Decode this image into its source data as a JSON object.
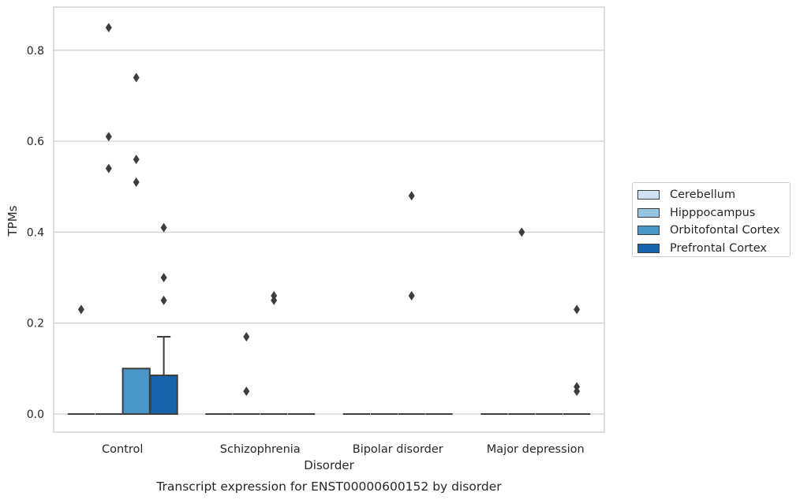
{
  "chart_data": {
    "type": "box",
    "title": "Transcript expression for ENST00000600152 by disorder",
    "xlabel": "Disorder",
    "ylabel": "TPMs",
    "ylim": [
      -0.04,
      0.895
    ],
    "yticks": [
      0.0,
      0.2,
      0.4,
      0.6,
      0.8
    ],
    "ytick_labels": [
      "0.0",
      "0.2",
      "0.4",
      "0.6",
      "0.8"
    ],
    "grid": "horizontal",
    "legend_position": "right",
    "categories": [
      "Control",
      "Schizophrenia",
      "Bipolar disorder",
      "Major depression"
    ],
    "series": [
      {
        "name": "Cerebellum",
        "color": "#d0e1f2",
        "boxes": [
          {
            "q1": 0,
            "median": 0,
            "q3": 0,
            "whisker_low": 0,
            "whisker_high": 0,
            "outliers": [
              0.23
            ]
          },
          {
            "q1": 0,
            "median": 0,
            "q3": 0,
            "whisker_low": 0,
            "whisker_high": 0,
            "outliers": []
          },
          {
            "q1": 0,
            "median": 0,
            "q3": 0,
            "whisker_low": 0,
            "whisker_high": 0,
            "outliers": []
          },
          {
            "q1": 0,
            "median": 0,
            "q3": 0,
            "whisker_low": 0,
            "whisker_high": 0,
            "outliers": []
          }
        ]
      },
      {
        "name": "Hipppocampus",
        "color": "#94c4df",
        "boxes": [
          {
            "q1": 0,
            "median": 0,
            "q3": 0,
            "whisker_low": 0,
            "whisker_high": 0,
            "outliers": [
              0.85,
              0.61,
              0.54
            ]
          },
          {
            "q1": 0,
            "median": 0,
            "q3": 0,
            "whisker_low": 0,
            "whisker_high": 0,
            "outliers": [
              0.17,
              0.05
            ]
          },
          {
            "q1": 0,
            "median": 0,
            "q3": 0,
            "whisker_low": 0,
            "whisker_high": 0,
            "outliers": []
          },
          {
            "q1": 0,
            "median": 0,
            "q3": 0,
            "whisker_low": 0,
            "whisker_high": 0,
            "outliers": [
              0.4
            ]
          }
        ]
      },
      {
        "name": "Orbitofontal Cortex",
        "color": "#4a98c9",
        "boxes": [
          {
            "q1": 0,
            "median": 0,
            "q3": 0.1,
            "whisker_low": 0,
            "whisker_high": 0.1,
            "outliers": [
              0.74,
              0.56,
              0.51
            ]
          },
          {
            "q1": 0,
            "median": 0,
            "q3": 0,
            "whisker_low": 0,
            "whisker_high": 0,
            "outliers": [
              0.26,
              0.25
            ]
          },
          {
            "q1": 0,
            "median": 0,
            "q3": 0,
            "whisker_low": 0,
            "whisker_high": 0,
            "outliers": [
              0.48,
              0.26
            ]
          },
          {
            "q1": 0,
            "median": 0,
            "q3": 0,
            "whisker_low": 0,
            "whisker_high": 0,
            "outliers": []
          }
        ]
      },
      {
        "name": "Prefrontal Cortex",
        "color": "#1764ab",
        "boxes": [
          {
            "q1": 0,
            "median": 0,
            "q3": 0.085,
            "whisker_low": 0,
            "whisker_high": 0.17,
            "outliers": [
              0.41,
              0.3,
              0.25
            ]
          },
          {
            "q1": 0,
            "median": 0,
            "q3": 0,
            "whisker_low": 0,
            "whisker_high": 0,
            "outliers": []
          },
          {
            "q1": 0,
            "median": 0,
            "q3": 0,
            "whisker_low": 0,
            "whisker_high": 0,
            "outliers": []
          },
          {
            "q1": 0,
            "median": 0,
            "q3": 0,
            "whisker_low": 0,
            "whisker_high": 0,
            "outliers": [
              0.23,
              0.06,
              0.05
            ]
          }
        ]
      }
    ]
  }
}
